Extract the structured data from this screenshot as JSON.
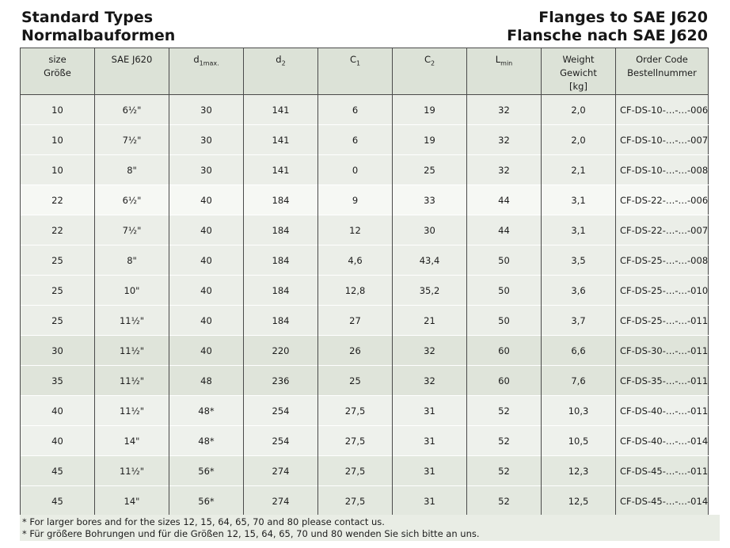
{
  "titles": {
    "left": [
      "Standard Types",
      "Normalbauformen"
    ],
    "right": [
      "Flanges to SAE J620",
      "Flansche nach SAE J620"
    ]
  },
  "table": {
    "columns": [
      {
        "id": "size",
        "lines": [
          "size",
          "Größe"
        ]
      },
      {
        "id": "sae-j620",
        "lines": [
          "SAE J620"
        ]
      },
      {
        "id": "d1max",
        "base": "d",
        "sub": "1max."
      },
      {
        "id": "d2",
        "base": "d",
        "sub": "2"
      },
      {
        "id": "c1",
        "base": "C",
        "sub": "1"
      },
      {
        "id": "c2",
        "base": "C",
        "sub": "2"
      },
      {
        "id": "lmin",
        "base": "L",
        "sub": "min"
      },
      {
        "id": "weight",
        "lines": [
          "Weight",
          "Gewicht",
          "[kg]"
        ]
      },
      {
        "id": "order-code",
        "lines": [
          "Order Code",
          "Bestellnummer"
        ]
      }
    ],
    "rows": [
      {
        "shade": "a",
        "cells": [
          "10",
          "6½\"",
          "30",
          "141",
          "6",
          "19",
          "32",
          "2,0",
          "CF-DS-10-…-…-006"
        ]
      },
      {
        "shade": "a",
        "cells": [
          "10",
          "7½\"",
          "30",
          "141",
          "6",
          "19",
          "32",
          "2,0",
          "CF-DS-10-…-…-007"
        ]
      },
      {
        "shade": "a",
        "cells": [
          "10",
          "8\"",
          "30",
          "141",
          "0",
          "25",
          "32",
          "2,1",
          "CF-DS-10-…-…-008"
        ]
      },
      {
        "shade": "b",
        "cells": [
          "22",
          "6½\"",
          "40",
          "184",
          "9",
          "33",
          "44",
          "3,1",
          "CF-DS-22-…-…-006"
        ]
      },
      {
        "shade": "a",
        "cells": [
          "22",
          "7½\"",
          "40",
          "184",
          "12",
          "30",
          "44",
          "3,1",
          "CF-DS-22-…-…-007"
        ]
      },
      {
        "shade": "a",
        "cells": [
          "25",
          "8\"",
          "40",
          "184",
          "4,6",
          "43,4",
          "50",
          "3,5",
          "CF-DS-25-…-…-008"
        ]
      },
      {
        "shade": "a",
        "cells": [
          "25",
          "10\"",
          "40",
          "184",
          "12,8",
          "35,2",
          "50",
          "3,6",
          "CF-DS-25-…-…-010"
        ]
      },
      {
        "shade": "a",
        "cells": [
          "25",
          "11½\"",
          "40",
          "184",
          "27",
          "21",
          "50",
          "3,7",
          "CF-DS-25-…-…-011"
        ]
      },
      {
        "shade": "c",
        "cells": [
          "30",
          "11½\"",
          "40",
          "220",
          "26",
          "32",
          "60",
          "6,6",
          "CF-DS-30-…-…-011"
        ]
      },
      {
        "shade": "c",
        "cells": [
          "35",
          "11½\"",
          "48",
          "236",
          "25",
          "32",
          "60",
          "7,6",
          "CF-DS-35-…-…-011"
        ]
      },
      {
        "shade": "d",
        "cells": [
          "40",
          "11½\"",
          "48*",
          "254",
          "27,5",
          "31",
          "52",
          "10,3",
          "CF-DS-40-…-…-011"
        ]
      },
      {
        "shade": "d",
        "cells": [
          "40",
          "14\"",
          "48*",
          "254",
          "27,5",
          "31",
          "52",
          "10,5",
          "CF-DS-40-…-…-014"
        ]
      },
      {
        "shade": "e",
        "cells": [
          "45",
          "11½\"",
          "56*",
          "274",
          "27,5",
          "31",
          "52",
          "12,3",
          "CF-DS-45-…-…-011"
        ]
      },
      {
        "shade": "e",
        "cells": [
          "45",
          "14\"",
          "56*",
          "274",
          "27,5",
          "31",
          "52",
          "12,5",
          "CF-DS-45-…-…-014"
        ]
      }
    ]
  },
  "footnotes": [
    "* For larger bores and for the sizes 12, 15, 64, 65, 70 and 80 please contact us.",
    "* Für größere Bohrungen und für die Größen 12, 15, 64, 65, 70 und 80 wenden Sie sich bitte an uns."
  ],
  "colors": {
    "header_bg": "#dce2d7",
    "band_light": "#ebeee8",
    "band_white": "#f6f8f4",
    "band_dark": "#dfe4da",
    "band_pale": "#eef1ec",
    "band_mid": "#e3e8df",
    "border_dark": "#4a4a4a",
    "footnote_bg": "#e9ede5"
  }
}
